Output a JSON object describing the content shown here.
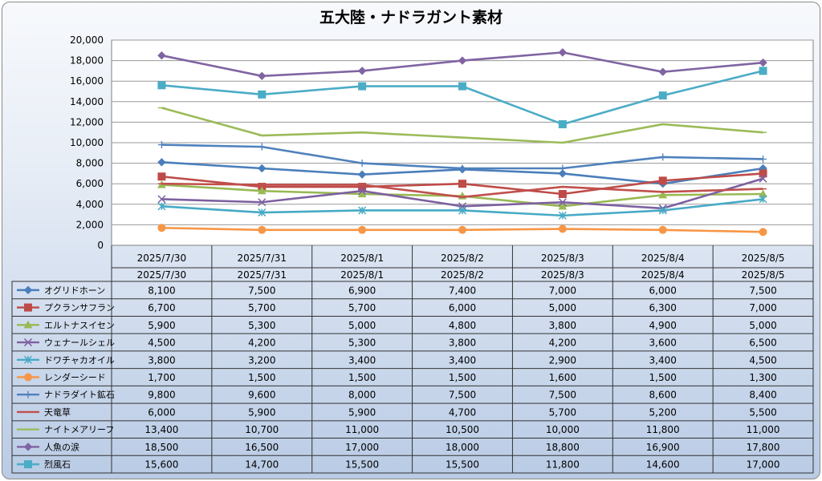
{
  "chart_data": {
    "type": "line",
    "title": "五大陸・ナドラガント素材",
    "categories": [
      "2025/7/30",
      "2025/7/31",
      "2025/8/1",
      "2025/8/2",
      "2025/8/3",
      "2025/8/4",
      "2025/8/5"
    ],
    "ylim": [
      0,
      20000
    ],
    "yticks": [
      "0",
      "2,000",
      "4,000",
      "6,000",
      "8,000",
      "10,000",
      "12,000",
      "14,000",
      "16,000",
      "18,000",
      "20,000"
    ],
    "grid": true,
    "legend": "data-table",
    "series": [
      {
        "name": "オグリドホーン",
        "color": "#4a7ebb",
        "marker": "diamond",
        "values": [
          8100,
          7500,
          6900,
          7400,
          7000,
          6000,
          7500
        ],
        "labels": [
          "8,100",
          "7,500",
          "6,900",
          "7,400",
          "7,000",
          "6,000",
          "7,500"
        ]
      },
      {
        "name": "プクランサフラン",
        "color": "#be4b48",
        "marker": "square",
        "values": [
          6700,
          5700,
          5700,
          6000,
          5000,
          6300,
          7000
        ],
        "labels": [
          "6,700",
          "5,700",
          "5,700",
          "6,000",
          "5,000",
          "6,300",
          "7,000"
        ]
      },
      {
        "name": "エルトナスイセン",
        "color": "#98b954",
        "marker": "triangle",
        "values": [
          5900,
          5300,
          5000,
          4800,
          3800,
          4900,
          5000
        ],
        "labels": [
          "5,900",
          "5,300",
          "5,000",
          "4,800",
          "3,800",
          "4,900",
          "5,000"
        ]
      },
      {
        "name": "ウェナールシェル",
        "color": "#7d60a0",
        "marker": "x",
        "values": [
          4500,
          4200,
          5300,
          3800,
          4200,
          3600,
          6500
        ],
        "labels": [
          "4,500",
          "4,200",
          "5,300",
          "3,800",
          "4,200",
          "3,600",
          "6,500"
        ]
      },
      {
        "name": "ドワチャカオイル",
        "color": "#46aac5",
        "marker": "star",
        "values": [
          3800,
          3200,
          3400,
          3400,
          2900,
          3400,
          4500
        ],
        "labels": [
          "3,800",
          "3,200",
          "3,400",
          "3,400",
          "2,900",
          "3,400",
          "4,500"
        ]
      },
      {
        "name": "レンダーシード",
        "color": "#f79646",
        "marker": "circle",
        "values": [
          1700,
          1500,
          1500,
          1500,
          1600,
          1500,
          1300
        ],
        "labels": [
          "1,700",
          "1,500",
          "1,500",
          "1,500",
          "1,600",
          "1,500",
          "1,300"
        ]
      },
      {
        "name": "ナドラダイト鉱石",
        "color": "#4f81bd",
        "marker": "plus",
        "values": [
          9800,
          9600,
          8000,
          7500,
          7500,
          8600,
          8400
        ],
        "labels": [
          "9,800",
          "9,600",
          "8,000",
          "7,500",
          "7,500",
          "8,600",
          "8,400"
        ]
      },
      {
        "name": "天竜草",
        "color": "#c0504d",
        "marker": "dash",
        "values": [
          6000,
          5900,
          5900,
          4700,
          5700,
          5200,
          5500
        ],
        "labels": [
          "6,000",
          "5,900",
          "5,900",
          "4,700",
          "5,700",
          "5,200",
          "5,500"
        ]
      },
      {
        "name": "ナイトメアリーフ",
        "color": "#9bbb59",
        "marker": "dash",
        "values": [
          13400,
          10700,
          11000,
          10500,
          10000,
          11800,
          11000
        ],
        "labels": [
          "13,400",
          "10,700",
          "11,000",
          "10,500",
          "10,000",
          "11,800",
          "11,000"
        ]
      },
      {
        "name": "人魚の涙",
        "color": "#8064a2",
        "marker": "diamond",
        "values": [
          18500,
          16500,
          17000,
          18000,
          18800,
          16900,
          17800
        ],
        "labels": [
          "18,500",
          "16,500",
          "17,000",
          "18,000",
          "18,800",
          "16,900",
          "17,800"
        ]
      },
      {
        "name": "烈風石",
        "color": "#4bacc6",
        "marker": "square",
        "values": [
          15600,
          14700,
          15500,
          15500,
          11800,
          14600,
          17000
        ],
        "labels": [
          "15,600",
          "14,700",
          "15,500",
          "15,500",
          "11,800",
          "14,600",
          "17,000"
        ]
      }
    ]
  }
}
